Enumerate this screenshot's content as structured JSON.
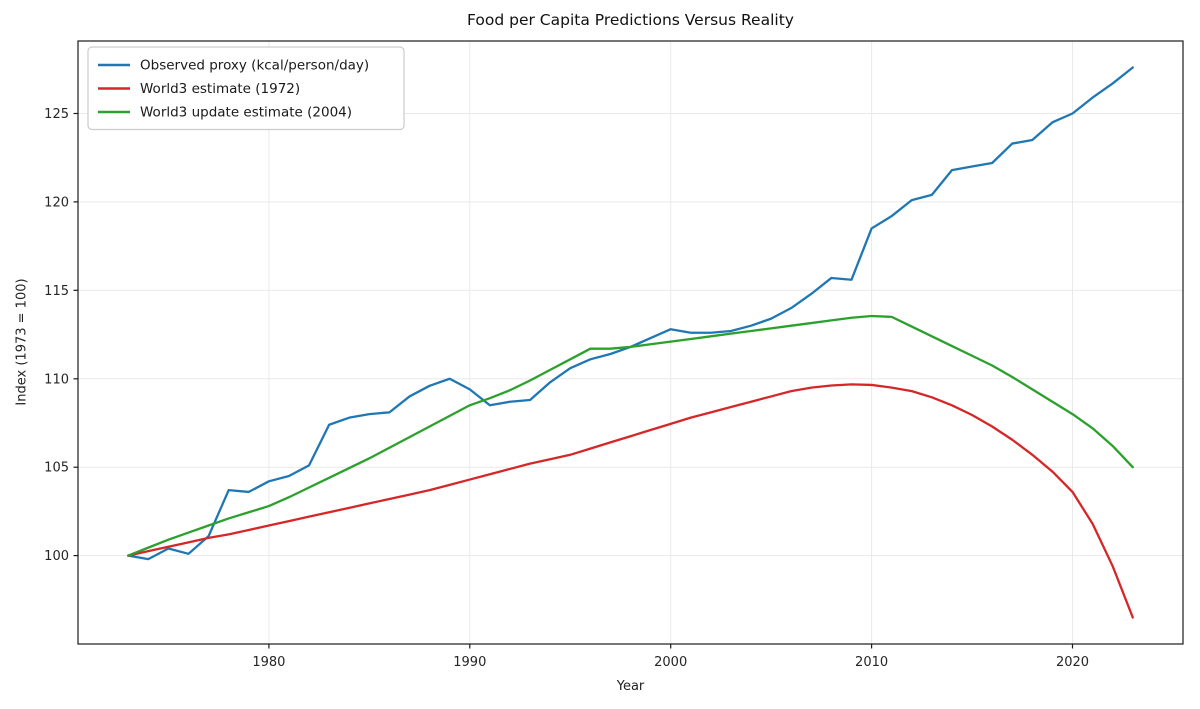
{
  "chart_data": {
    "type": "line",
    "title": "Food per Capita Predictions Versus Reality",
    "xlabel": "Year",
    "ylabel": "Index (1973 = 100)",
    "xlim": [
      1970.5,
      2025.5
    ],
    "ylim": [
      95.0,
      129.1
    ],
    "xticks": [
      1980,
      1990,
      2000,
      2010,
      2020
    ],
    "yticks": [
      100,
      105,
      110,
      115,
      120,
      125
    ],
    "grid": true,
    "legend_position": "upper left",
    "x": [
      1973,
      1974,
      1975,
      1976,
      1977,
      1978,
      1979,
      1980,
      1981,
      1982,
      1983,
      1984,
      1985,
      1986,
      1987,
      1988,
      1989,
      1990,
      1991,
      1992,
      1993,
      1994,
      1995,
      1996,
      1997,
      1998,
      1999,
      2000,
      2001,
      2002,
      2003,
      2004,
      2005,
      2006,
      2007,
      2008,
      2009,
      2010,
      2011,
      2012,
      2013,
      2014,
      2015,
      2016,
      2017,
      2018,
      2019,
      2020,
      2021,
      2022,
      2023
    ],
    "series": [
      {
        "name": "Observed proxy (kcal/person/day)",
        "color": "#1f77b4",
        "values": [
          100.0,
          99.8,
          100.4,
          100.1,
          101.1,
          103.7,
          103.6,
          104.2,
          104.5,
          105.1,
          107.4,
          107.8,
          108.0,
          108.1,
          109.0,
          109.6,
          110.0,
          109.4,
          108.5,
          108.7,
          108.8,
          109.8,
          110.6,
          111.1,
          111.4,
          111.8,
          112.3,
          112.8,
          112.6,
          112.6,
          112.7,
          113.0,
          113.4,
          114.0,
          114.8,
          115.7,
          115.6,
          118.5,
          119.2,
          120.1,
          120.4,
          121.8,
          122.0,
          122.2,
          123.3,
          123.5,
          124.5,
          125.0,
          125.9,
          126.7,
          127.6
        ]
      },
      {
        "name": "World3 estimate (1972)",
        "color": "#d62728",
        "values": [
          100.0,
          100.25,
          100.5,
          100.75,
          101.0,
          101.2,
          101.45,
          101.7,
          101.95,
          102.2,
          102.45,
          102.7,
          102.95,
          103.2,
          103.45,
          103.7,
          104.0,
          104.3,
          104.6,
          104.9,
          105.2,
          105.45,
          105.7,
          106.05,
          106.4,
          106.75,
          107.1,
          107.45,
          107.8,
          108.1,
          108.4,
          108.7,
          109.0,
          109.3,
          109.5,
          109.62,
          109.68,
          109.65,
          109.5,
          109.3,
          108.95,
          108.5,
          107.95,
          107.3,
          106.55,
          105.7,
          104.75,
          103.6,
          101.8,
          99.4,
          96.5
        ]
      },
      {
        "name": "World3 update estimate (2004)",
        "color": "#2ca02c",
        "values": [
          100.0,
          100.45,
          100.9,
          101.3,
          101.7,
          102.1,
          102.45,
          102.8,
          103.3,
          103.85,
          104.4,
          104.95,
          105.5,
          106.1,
          106.7,
          107.3,
          107.9,
          108.5,
          108.9,
          109.35,
          109.9,
          110.5,
          111.1,
          111.7,
          111.7,
          111.8,
          111.95,
          112.1,
          112.25,
          112.4,
          112.55,
          112.7,
          112.85,
          113.0,
          113.15,
          113.3,
          113.45,
          113.55,
          113.5,
          112.95,
          112.4,
          111.85,
          111.3,
          110.75,
          110.1,
          109.4,
          108.7,
          108.0,
          107.2,
          106.2,
          105.0
        ]
      }
    ],
    "style": {
      "grid_color": "#e9e9e9",
      "spine_color": "#1a1a1a",
      "legend_border_color": "#cccccc",
      "background": "#ffffff"
    }
  }
}
